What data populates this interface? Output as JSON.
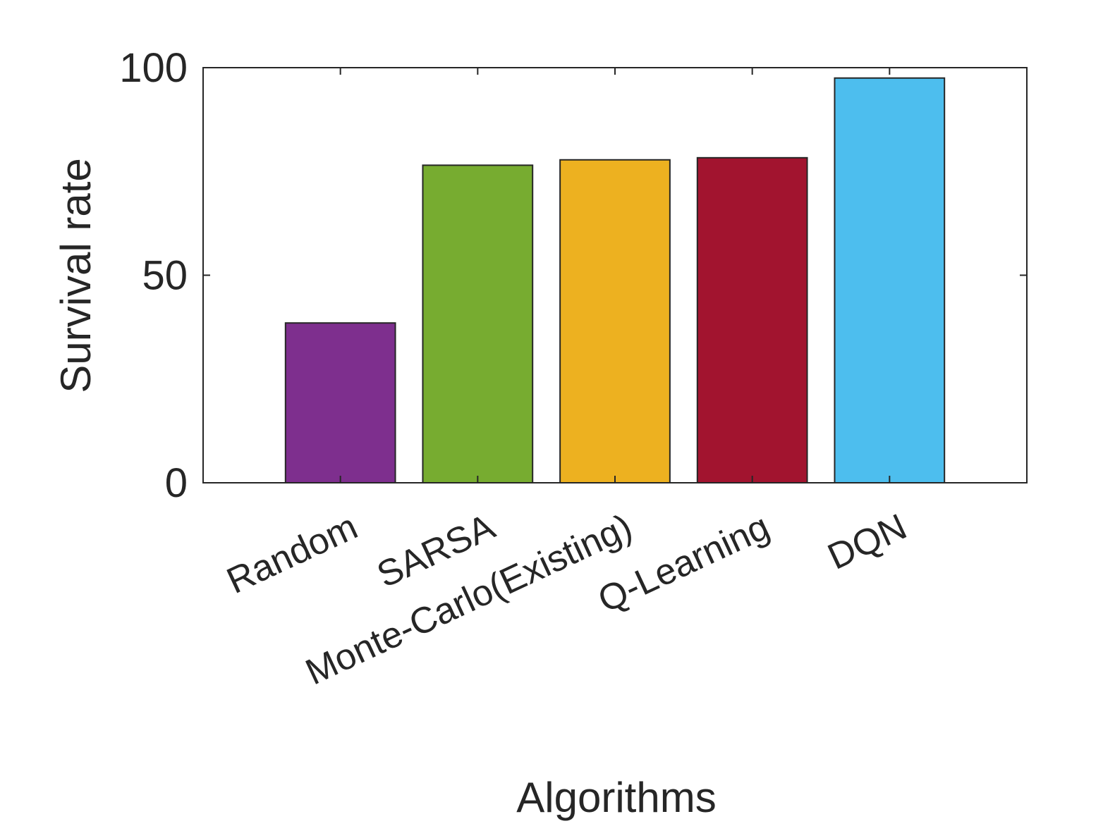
{
  "chart_data": {
    "type": "bar",
    "title": "",
    "xlabel": "Algorithms",
    "ylabel": "Survival rate",
    "categories": [
      "Random",
      "SARSA",
      "Monte-Carlo(Existing)",
      "Q-Learning",
      "DQN"
    ],
    "values": [
      38.5,
      76.5,
      77.8,
      78.3,
      97.5
    ],
    "colors": [
      "#7e2f8e",
      "#77ac30",
      "#edb120",
      "#a2142f",
      "#4dbeee"
    ],
    "ylim": [
      0,
      100
    ],
    "yticks": [
      0,
      50,
      100
    ],
    "ytick_labels": [
      "0",
      "50",
      "100"
    ],
    "xlim": [
      0,
      6
    ],
    "grid": false,
    "legend": "none"
  }
}
